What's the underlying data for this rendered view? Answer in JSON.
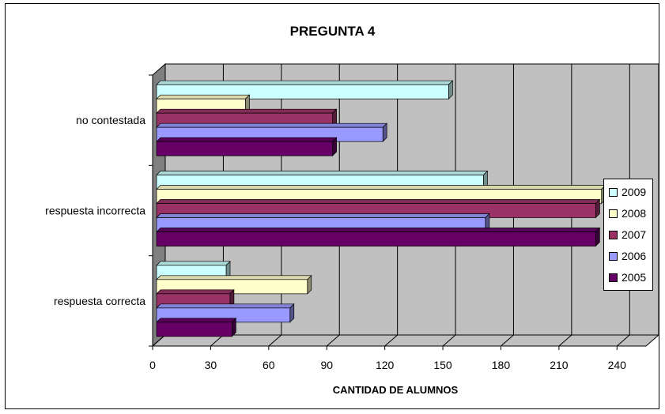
{
  "chart_data": {
    "type": "bar",
    "orientation": "horizontal",
    "title": "PREGUNTA 4",
    "xlabel": "CANTIDAD DE ALUMNOS",
    "ylabel": "",
    "xlim": [
      0,
      255
    ],
    "xticks": [
      0,
      30,
      60,
      90,
      120,
      150,
      180,
      210,
      240
    ],
    "grid": true,
    "legend_position": "right",
    "categories": [
      "no contestada",
      "respuesta incorrecta",
      "respuesta correcta"
    ],
    "series": [
      {
        "name": "2009",
        "color": "#ccffff",
        "values": [
          153,
          171,
          38
        ]
      },
      {
        "name": "2008",
        "color": "#ffffcc",
        "values": [
          48,
          232,
          80
        ]
      },
      {
        "name": "2007",
        "color": "#993366",
        "values": [
          93,
          229,
          40
        ]
      },
      {
        "name": "2006",
        "color": "#9999ff",
        "values": [
          119,
          172,
          71
        ]
      },
      {
        "name": "2005",
        "color": "#660066",
        "values": [
          93,
          229,
          41
        ]
      }
    ]
  }
}
